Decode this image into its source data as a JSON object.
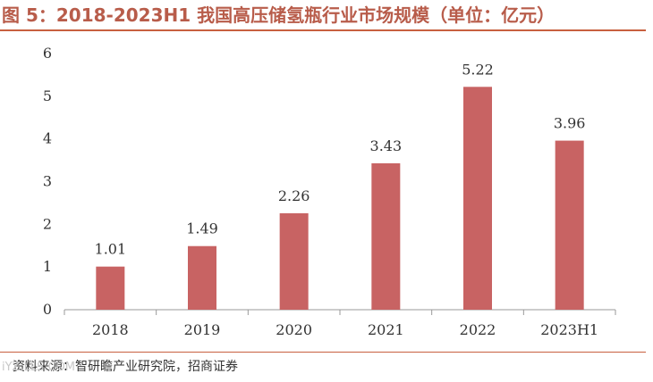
{
  "header": {
    "title": "图 5：2018-2023H1 我国高压储氢瓶行业市场规模（单位：亿元）"
  },
  "chart_data": {
    "type": "bar",
    "title": "2018-2023H1 我国高压储氢瓶行业市场规模（单位：亿元）",
    "categories": [
      "2018",
      "2019",
      "2020",
      "2021",
      "2022",
      "2023H1"
    ],
    "values": [
      1.01,
      1.49,
      2.26,
      3.43,
      5.22,
      3.96
    ],
    "value_labels": [
      "1.01",
      "1.49",
      "2.26",
      "3.43",
      "5.22",
      "3.96"
    ],
    "yticks": [
      "0",
      "1",
      "2",
      "3",
      "4",
      "5",
      "6"
    ],
    "ylim": [
      0,
      6
    ],
    "xlabel": "",
    "ylabel": "",
    "bar_color": "#c86363"
  },
  "footer": {
    "source": "资料来源：智研瞻产业研究院，招商证券",
    "watermark": "iYZ.LLS.COM"
  },
  "colors": {
    "title": "#b85c4a",
    "rule": "#c8603f"
  }
}
